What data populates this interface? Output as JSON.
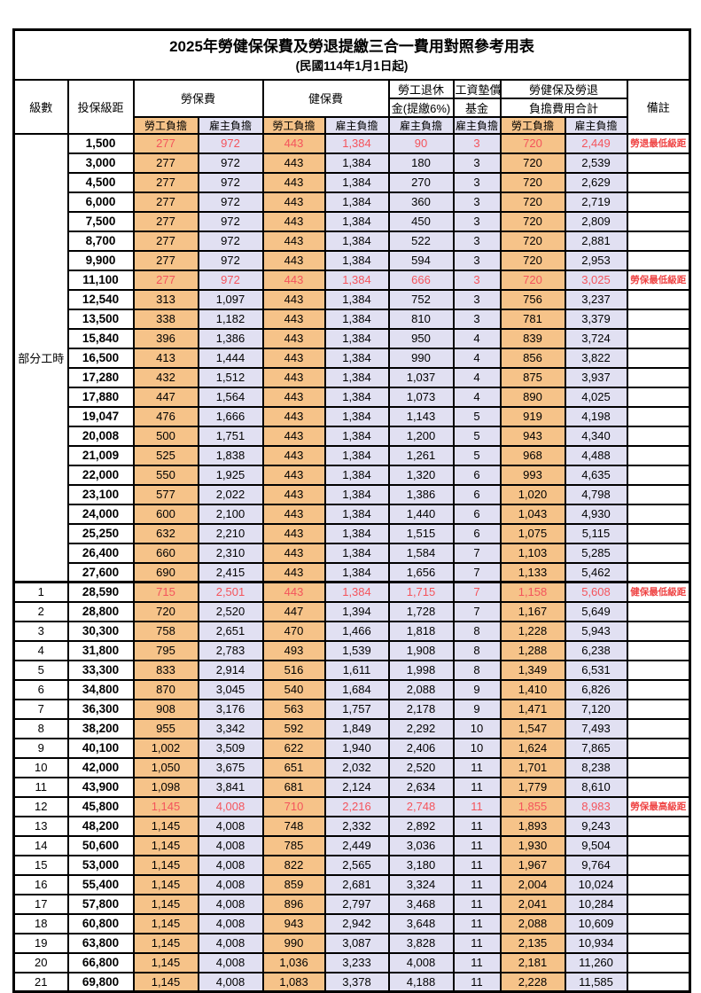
{
  "table": {
    "title": "2025年勞健保保費及勞退提繳三合一費用對照參考用表",
    "subtitle": "(民國114年1月1日起)",
    "colors": {
      "employee_fill": "#F6C389",
      "employer_fill": "#E1E0F2",
      "highlight_red": "#F4545C",
      "note_red": "#EF4444",
      "border": "#000000"
    },
    "header": {
      "level": "級數",
      "bracket": "投保級距",
      "labor_insurance": "勞保費",
      "health_insurance": "健保費",
      "pension_line1": "勞工退休",
      "pension_line2": "金(提繳6%)",
      "wage_fund_line1": "工資墊償",
      "wage_fund_line2": "基金",
      "total_line1": "勞健保及勞退",
      "total_line2": "負擔費用合計",
      "remark": "備註",
      "employee": "勞工負擔",
      "employer": "雇主負擔"
    },
    "part_time_group": {
      "label": "部分工時",
      "row_count": 23
    },
    "rows": [
      {
        "level": null,
        "bracket": "1,500",
        "values": [
          "277",
          "972",
          "443",
          "1,384",
          "90",
          "3",
          "720",
          "2,449"
        ],
        "red": true,
        "note": "勞退最低級距"
      },
      {
        "level": null,
        "bracket": "3,000",
        "values": [
          "277",
          "972",
          "443",
          "1,384",
          "180",
          "3",
          "720",
          "2,539"
        ]
      },
      {
        "level": null,
        "bracket": "4,500",
        "values": [
          "277",
          "972",
          "443",
          "1,384",
          "270",
          "3",
          "720",
          "2,629"
        ]
      },
      {
        "level": null,
        "bracket": "6,000",
        "values": [
          "277",
          "972",
          "443",
          "1,384",
          "360",
          "3",
          "720",
          "2,719"
        ]
      },
      {
        "level": null,
        "bracket": "7,500",
        "values": [
          "277",
          "972",
          "443",
          "1,384",
          "450",
          "3",
          "720",
          "2,809"
        ]
      },
      {
        "level": null,
        "bracket": "8,700",
        "values": [
          "277",
          "972",
          "443",
          "1,384",
          "522",
          "3",
          "720",
          "2,881"
        ]
      },
      {
        "level": null,
        "bracket": "9,900",
        "values": [
          "277",
          "972",
          "443",
          "1,384",
          "594",
          "3",
          "720",
          "2,953"
        ]
      },
      {
        "level": null,
        "bracket": "11,100",
        "values": [
          "277",
          "972",
          "443",
          "1,384",
          "666",
          "3",
          "720",
          "3,025"
        ],
        "red": true,
        "note": "勞保最低級距"
      },
      {
        "level": null,
        "bracket": "12,540",
        "values": [
          "313",
          "1,097",
          "443",
          "1,384",
          "752",
          "3",
          "756",
          "3,237"
        ]
      },
      {
        "level": null,
        "bracket": "13,500",
        "values": [
          "338",
          "1,182",
          "443",
          "1,384",
          "810",
          "3",
          "781",
          "3,379"
        ]
      },
      {
        "level": null,
        "bracket": "15,840",
        "values": [
          "396",
          "1,386",
          "443",
          "1,384",
          "950",
          "4",
          "839",
          "3,724"
        ]
      },
      {
        "level": null,
        "bracket": "16,500",
        "values": [
          "413",
          "1,444",
          "443",
          "1,384",
          "990",
          "4",
          "856",
          "3,822"
        ]
      },
      {
        "level": null,
        "bracket": "17,280",
        "values": [
          "432",
          "1,512",
          "443",
          "1,384",
          "1,037",
          "4",
          "875",
          "3,937"
        ]
      },
      {
        "level": null,
        "bracket": "17,880",
        "values": [
          "447",
          "1,564",
          "443",
          "1,384",
          "1,073",
          "4",
          "890",
          "4,025"
        ]
      },
      {
        "level": null,
        "bracket": "19,047",
        "values": [
          "476",
          "1,666",
          "443",
          "1,384",
          "1,143",
          "5",
          "919",
          "4,198"
        ]
      },
      {
        "level": null,
        "bracket": "20,008",
        "values": [
          "500",
          "1,751",
          "443",
          "1,384",
          "1,200",
          "5",
          "943",
          "4,340"
        ]
      },
      {
        "level": null,
        "bracket": "21,009",
        "values": [
          "525",
          "1,838",
          "443",
          "1,384",
          "1,261",
          "5",
          "968",
          "4,488"
        ]
      },
      {
        "level": null,
        "bracket": "22,000",
        "values": [
          "550",
          "1,925",
          "443",
          "1,384",
          "1,320",
          "6",
          "993",
          "4,635"
        ]
      },
      {
        "level": null,
        "bracket": "23,100",
        "values": [
          "577",
          "2,022",
          "443",
          "1,384",
          "1,386",
          "6",
          "1,020",
          "4,798"
        ]
      },
      {
        "level": null,
        "bracket": "24,000",
        "values": [
          "600",
          "2,100",
          "443",
          "1,384",
          "1,440",
          "6",
          "1,043",
          "4,930"
        ]
      },
      {
        "level": null,
        "bracket": "25,250",
        "values": [
          "632",
          "2,210",
          "443",
          "1,384",
          "1,515",
          "6",
          "1,075",
          "5,115"
        ]
      },
      {
        "level": null,
        "bracket": "26,400",
        "values": [
          "660",
          "2,310",
          "443",
          "1,384",
          "1,584",
          "7",
          "1,103",
          "5,285"
        ]
      },
      {
        "level": null,
        "bracket": "27,600",
        "values": [
          "690",
          "2,415",
          "443",
          "1,384",
          "1,656",
          "7",
          "1,133",
          "5,462"
        ]
      },
      {
        "level": "1",
        "bracket": "28,590",
        "values": [
          "715",
          "2,501",
          "443",
          "1,384",
          "1,715",
          "7",
          "1,158",
          "5,608"
        ],
        "red": true,
        "note": "健保最低級距",
        "thick_top": true
      },
      {
        "level": "2",
        "bracket": "28,800",
        "values": [
          "720",
          "2,520",
          "447",
          "1,394",
          "1,728",
          "7",
          "1,167",
          "5,649"
        ]
      },
      {
        "level": "3",
        "bracket": "30,300",
        "values": [
          "758",
          "2,651",
          "470",
          "1,466",
          "1,818",
          "8",
          "1,228",
          "5,943"
        ]
      },
      {
        "level": "4",
        "bracket": "31,800",
        "values": [
          "795",
          "2,783",
          "493",
          "1,539",
          "1,908",
          "8",
          "1,288",
          "6,238"
        ]
      },
      {
        "level": "5",
        "bracket": "33,300",
        "values": [
          "833",
          "2,914",
          "516",
          "1,611",
          "1,998",
          "8",
          "1,349",
          "6,531"
        ]
      },
      {
        "level": "6",
        "bracket": "34,800",
        "values": [
          "870",
          "3,045",
          "540",
          "1,684",
          "2,088",
          "9",
          "1,410",
          "6,826"
        ]
      },
      {
        "level": "7",
        "bracket": "36,300",
        "values": [
          "908",
          "3,176",
          "563",
          "1,757",
          "2,178",
          "9",
          "1,471",
          "7,120"
        ]
      },
      {
        "level": "8",
        "bracket": "38,200",
        "values": [
          "955",
          "3,342",
          "592",
          "1,849",
          "2,292",
          "10",
          "1,547",
          "7,493"
        ]
      },
      {
        "level": "9",
        "bracket": "40,100",
        "values": [
          "1,002",
          "3,509",
          "622",
          "1,940",
          "2,406",
          "10",
          "1,624",
          "7,865"
        ]
      },
      {
        "level": "10",
        "bracket": "42,000",
        "values": [
          "1,050",
          "3,675",
          "651",
          "2,032",
          "2,520",
          "11",
          "1,701",
          "8,238"
        ]
      },
      {
        "level": "11",
        "bracket": "43,900",
        "values": [
          "1,098",
          "3,841",
          "681",
          "2,124",
          "2,634",
          "11",
          "1,779",
          "8,610"
        ]
      },
      {
        "level": "12",
        "bracket": "45,800",
        "values": [
          "1,145",
          "4,008",
          "710",
          "2,216",
          "2,748",
          "11",
          "1,855",
          "8,983"
        ],
        "red": true,
        "note": "勞保最高級距"
      },
      {
        "level": "13",
        "bracket": "48,200",
        "values": [
          "1,145",
          "4,008",
          "748",
          "2,332",
          "2,892",
          "11",
          "1,893",
          "9,243"
        ]
      },
      {
        "level": "14",
        "bracket": "50,600",
        "values": [
          "1,145",
          "4,008",
          "785",
          "2,449",
          "3,036",
          "11",
          "1,930",
          "9,504"
        ]
      },
      {
        "level": "15",
        "bracket": "53,000",
        "values": [
          "1,145",
          "4,008",
          "822",
          "2,565",
          "3,180",
          "11",
          "1,967",
          "9,764"
        ]
      },
      {
        "level": "16",
        "bracket": "55,400",
        "values": [
          "1,145",
          "4,008",
          "859",
          "2,681",
          "3,324",
          "11",
          "2,004",
          "10,024"
        ]
      },
      {
        "level": "17",
        "bracket": "57,800",
        "values": [
          "1,145",
          "4,008",
          "896",
          "2,797",
          "3,468",
          "11",
          "2,041",
          "10,284"
        ]
      },
      {
        "level": "18",
        "bracket": "60,800",
        "values": [
          "1,145",
          "4,008",
          "943",
          "2,942",
          "3,648",
          "11",
          "2,088",
          "10,609"
        ]
      },
      {
        "level": "19",
        "bracket": "63,800",
        "values": [
          "1,145",
          "4,008",
          "990",
          "3,087",
          "3,828",
          "11",
          "2,135",
          "10,934"
        ]
      },
      {
        "level": "20",
        "bracket": "66,800",
        "values": [
          "1,145",
          "4,008",
          "1,036",
          "3,233",
          "4,008",
          "11",
          "2,181",
          "11,260"
        ]
      },
      {
        "level": "21",
        "bracket": "69,800",
        "values": [
          "1,145",
          "4,008",
          "1,083",
          "3,378",
          "4,188",
          "11",
          "2,228",
          "11,585"
        ]
      }
    ]
  }
}
